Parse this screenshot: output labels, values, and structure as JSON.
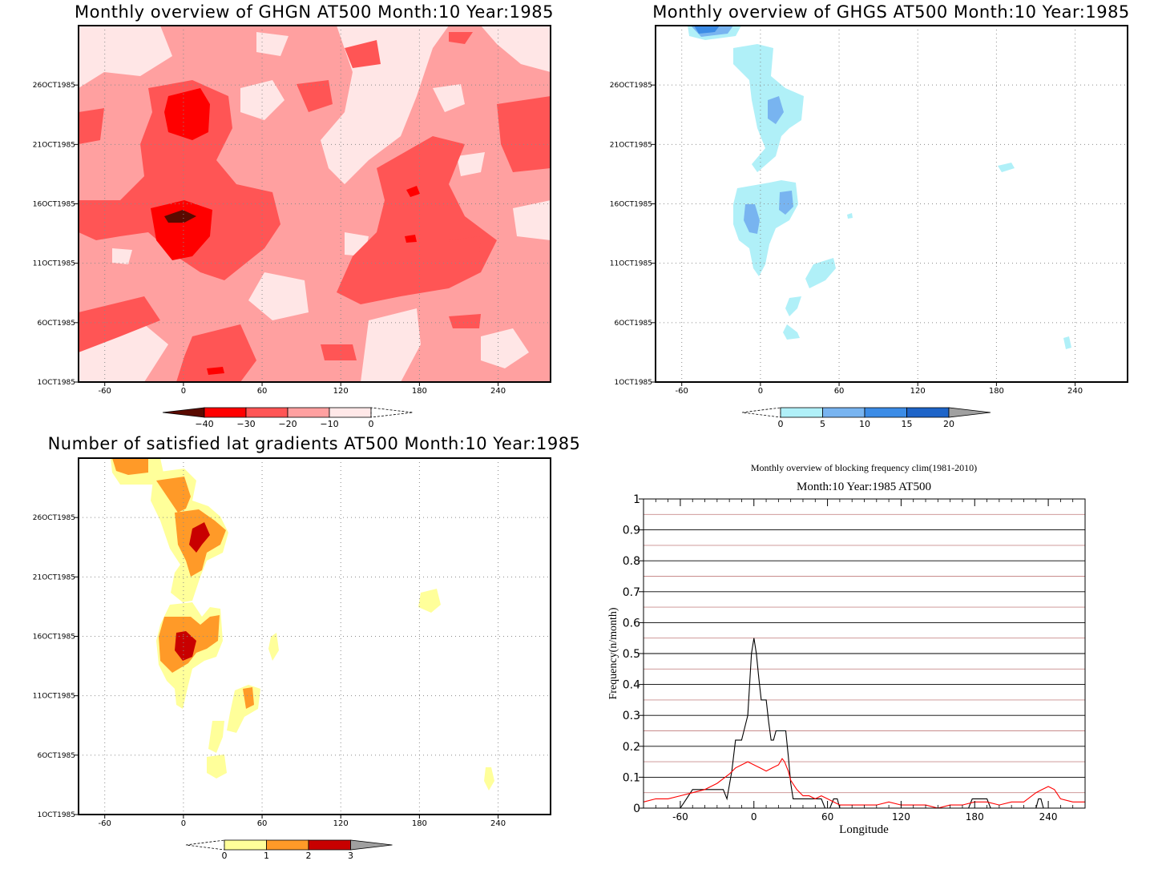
{
  "chart_data": [
    {
      "type": "heatmap",
      "title": "Monthly overview of GHGN AT500 Month:10 Year:1985",
      "x_ticks": [
        -60,
        0,
        60,
        120,
        180,
        240
      ],
      "y_ticks": [
        "1OCT1985",
        "6OCT1985",
        "11OCT1985",
        "16OCT1985",
        "21OCT1985",
        "26OCT1985"
      ],
      "xlim": [
        -80,
        280
      ],
      "ylim": [
        1,
        31
      ],
      "colorbar": {
        "labels": [
          "-40",
          "-30",
          "-20",
          "-10",
          "0"
        ],
        "colors": [
          "#5a0a00",
          "#ff0000",
          "#ff5555",
          "#ffa0a0",
          "#ffe8e8"
        ]
      },
      "background_color": "#ffa0a0",
      "dominant_features": [
        {
          "lon": 0,
          "day": 15,
          "value": -40
        },
        {
          "lon": 15,
          "day": 24,
          "value": -30
        },
        {
          "lon": 0,
          "day": 14,
          "value": -30
        },
        {
          "lon": 180,
          "day": 17,
          "value": -30
        }
      ]
    },
    {
      "type": "heatmap",
      "title": "Monthly overview of GHGS AT500 Month:10 Year:1985",
      "x_ticks": [
        -60,
        0,
        60,
        120,
        180,
        240
      ],
      "y_ticks": [
        "1OCT1985",
        "6OCT1985",
        "11OCT1985",
        "16OCT1985",
        "21OCT1985",
        "26OCT1985"
      ],
      "xlim": [
        -80,
        280
      ],
      "ylim": [
        1,
        31
      ],
      "colorbar": {
        "labels": [
          "0",
          "5",
          "10",
          "15",
          "20"
        ],
        "colors": [
          "#b0f0f8",
          "#78b4f0",
          "#3c8ce6",
          "#1e64c8"
        ]
      },
      "background_color": "#ffffff",
      "dominant_features": [
        {
          "lon": -35,
          "day": 31,
          "value": 15
        },
        {
          "lon": 12,
          "day": 24,
          "value": 10
        },
        {
          "lon": 18,
          "day": 16,
          "value": 10
        },
        {
          "lon": -5,
          "day": 15,
          "value": 10
        }
      ]
    },
    {
      "type": "heatmap",
      "title": "Number of satisfied lat gradients AT500 Month:10 Year:1985",
      "x_ticks": [
        -60,
        0,
        60,
        120,
        180,
        240
      ],
      "y_ticks": [
        "1OCT1985",
        "6OCT1985",
        "11OCT1985",
        "16OCT1985",
        "21OCT1985",
        "26OCT1985"
      ],
      "xlim": [
        -80,
        280
      ],
      "ylim": [
        1,
        31
      ],
      "colorbar": {
        "labels": [
          "0",
          "1",
          "2",
          "3"
        ],
        "colors": [
          "#ffff9a",
          "#ff9a28",
          "#c80000"
        ]
      },
      "background_color": "#ffffff",
      "dominant_features": [
        {
          "lon": 12,
          "day": 25,
          "value": 3
        },
        {
          "lon": 0,
          "day": 16,
          "value": 3
        },
        {
          "lon": 50,
          "day": 10,
          "value": 2
        },
        {
          "lon": -40,
          "day": 31,
          "value": 2
        }
      ]
    },
    {
      "type": "line",
      "title": "Monthly overview of blocking frequency clim(1981-2010)",
      "subtitle": "Month:10 Year:1985  AT500",
      "xlabel": "Longitude",
      "ylabel": "Frequency(n/month)",
      "xlim": [
        -90,
        270
      ],
      "ylim": [
        0,
        1
      ],
      "x_ticks": [
        -60,
        0,
        60,
        120,
        180,
        240
      ],
      "y_ticks": [
        0,
        0.1,
        0.2,
        0.3,
        0.4,
        0.5,
        0.6,
        0.7,
        0.8,
        0.9,
        1
      ],
      "grid": true,
      "series": [
        {
          "color": "#000000",
          "x": [
            -90,
            -60,
            -55,
            -50,
            -25,
            -22,
            -18,
            -15,
            -10,
            -5,
            -2,
            0,
            2,
            4,
            6,
            8,
            10,
            12,
            14,
            16,
            18,
            20,
            22,
            24,
            26,
            28,
            30,
            32,
            35,
            40,
            50,
            55,
            58,
            60,
            62,
            65,
            68,
            70,
            75,
            80,
            120,
            175,
            178,
            180,
            185,
            190,
            193,
            195,
            230,
            232,
            234,
            236,
            238,
            270
          ],
          "y": [
            0,
            0,
            0.03,
            0.06,
            0.06,
            0.03,
            0.12,
            0.22,
            0.22,
            0.3,
            0.5,
            0.55,
            0.5,
            0.42,
            0.35,
            0.35,
            0.35,
            0.28,
            0.22,
            0.22,
            0.25,
            0.25,
            0.25,
            0.25,
            0.25,
            0.17,
            0.08,
            0.03,
            0.03,
            0.03,
            0.03,
            0.03,
            0.0,
            0.0,
            0.0,
            0.03,
            0.03,
            0.0,
            0.0,
            0.0,
            0.0,
            0.0,
            0.03,
            0.03,
            0.03,
            0.03,
            0.0,
            0.0,
            0.0,
            0.03,
            0.03,
            0.0,
            0.0,
            0.0
          ]
        },
        {
          "color": "#ff0000",
          "x": [
            -90,
            -80,
            -70,
            -60,
            -50,
            -40,
            -30,
            -20,
            -15,
            -10,
            -5,
            0,
            5,
            10,
            15,
            20,
            23,
            25,
            28,
            30,
            35,
            40,
            45,
            50,
            55,
            60,
            65,
            70,
            80,
            90,
            100,
            110,
            120,
            130,
            140,
            150,
            160,
            170,
            180,
            190,
            200,
            210,
            220,
            230,
            235,
            240,
            245,
            250,
            260,
            270
          ],
          "y": [
            0.02,
            0.03,
            0.03,
            0.04,
            0.05,
            0.06,
            0.08,
            0.11,
            0.13,
            0.14,
            0.15,
            0.14,
            0.13,
            0.12,
            0.13,
            0.14,
            0.16,
            0.15,
            0.12,
            0.09,
            0.06,
            0.04,
            0.04,
            0.03,
            0.04,
            0.03,
            0.02,
            0.01,
            0.01,
            0.01,
            0.01,
            0.02,
            0.01,
            0.01,
            0.01,
            0.0,
            0.01,
            0.01,
            0.02,
            0.02,
            0.01,
            0.02,
            0.02,
            0.05,
            0.06,
            0.07,
            0.06,
            0.03,
            0.02,
            0.02
          ]
        }
      ]
    }
  ]
}
